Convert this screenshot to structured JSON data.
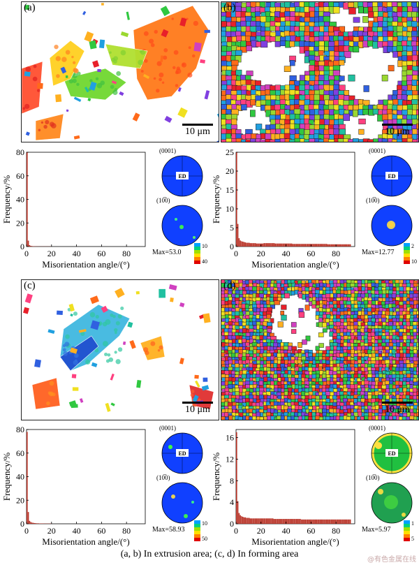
{
  "caption": "(a, b) In extrusion area; (c, d) In forming area",
  "watermark": "@有色金属在线",
  "panels": [
    {
      "label": "(a)",
      "scale": "10 μm",
      "pf_top": "(0001)",
      "pf_bottom": "(10̅0)",
      "ed": "ED",
      "max": "Max=53.0",
      "legend_ticks": [
        "10",
        "40"
      ],
      "texture": "a"
    },
    {
      "label": "(b)",
      "scale": "10 μm",
      "pf_top": "(0001)",
      "pf_bottom": "(10̅0)",
      "ed": "ED",
      "max": "Max=12.77",
      "legend_ticks": [
        "2",
        "10"
      ],
      "texture": "b"
    },
    {
      "label": "(c)",
      "scale": "10 μm",
      "pf_top": "(0001)",
      "pf_bottom": "(10̅0)",
      "ed": "ED",
      "max": "Max=58.93",
      "legend_ticks": [
        "10",
        "50"
      ],
      "texture": "c"
    },
    {
      "label": "(d)",
      "scale": "10 μm",
      "pf_top": "(0001)",
      "pf_bottom": "(10̅0)",
      "ed": "ED",
      "max": "Max=5.97",
      "legend_ticks": [
        "1",
        "5"
      ],
      "texture": "d"
    }
  ],
  "legend_colors": [
    "#00a0ff",
    "#00d080",
    "#a0e000",
    "#ffe000",
    "#ff8000",
    "#e00000"
  ],
  "chart_data": [
    {
      "type": "bar",
      "panel": "a",
      "xlabel": "Misorientation angle/(°)",
      "ylabel": "Frequency/%",
      "xlim": [
        0,
        95
      ],
      "ylim": [
        0,
        80
      ],
      "yticks": [
        0,
        20,
        40,
        60,
        80
      ],
      "xticks": [
        0,
        20,
        40,
        60,
        80
      ],
      "bin_width": 1,
      "values": [
        80,
        5,
        1.2,
        0.6,
        0.4,
        0.3,
        0.2,
        0.2,
        0.15,
        0.15,
        0.1,
        0.1,
        0.1,
        0.1,
        0.1,
        0.1,
        0.1,
        0.1,
        0.1,
        0.1
      ]
    },
    {
      "type": "bar",
      "panel": "b",
      "xlabel": "Misorientation angle/(°)",
      "ylabel": "Frequency/%",
      "xlim": [
        0,
        95
      ],
      "ylim": [
        0,
        25
      ],
      "yticks": [
        0,
        5,
        10,
        15,
        20,
        25
      ],
      "xticks": [
        0,
        20,
        40,
        60,
        80
      ],
      "bin_width": 1,
      "values": [
        25,
        6,
        2.2,
        1.6,
        1.4,
        1.3,
        1.2,
        1.1,
        1.0,
        1.0,
        1.0,
        0.9,
        0.9,
        0.9,
        0.9,
        0.9,
        0.8,
        0.8,
        0.8,
        0.8,
        0.8,
        0.8,
        0.9,
        0.9,
        0.9,
        0.9,
        0.9,
        0.9,
        0.9,
        0.9,
        0.9,
        0.8,
        0.8,
        0.8,
        0.8,
        0.8,
        0.8,
        0.8,
        0.8,
        0.8,
        0.8,
        0.8,
        0.8,
        0.8,
        0.8,
        0.7,
        0.7,
        0.7,
        0.7,
        0.7,
        0.7,
        0.7,
        0.7,
        0.7,
        0.7,
        0.7,
        0.7,
        0.7,
        0.7,
        0.7,
        0.7,
        0.7,
        0.7,
        0.7,
        0.7,
        0.7,
        0.7,
        0.7,
        0.7,
        0.7,
        0.7,
        0.7,
        0.7,
        0.6,
        0.6,
        0.6,
        0.6,
        0.6,
        0.6,
        0.6,
        0.6,
        0.6,
        0.6,
        0.6,
        0.6,
        0.6,
        0.6,
        0.6,
        0.6,
        0.6,
        0.6,
        0.6
      ]
    },
    {
      "type": "bar",
      "panel": "c",
      "xlabel": "Misorientation angle/(°)",
      "ylabel": "Frequency/%",
      "xlim": [
        0,
        95
      ],
      "ylim": [
        0,
        80
      ],
      "yticks": [
        0,
        20,
        40,
        60,
        80
      ],
      "xticks": [
        0,
        20,
        40,
        60,
        80
      ],
      "bin_width": 1,
      "values": [
        78,
        10,
        2.5,
        1.5,
        1.0,
        0.8,
        0.6,
        0.5,
        0.4,
        0.4,
        0.3,
        0.3,
        0.3,
        0.3,
        0.2,
        0.2,
        0.2,
        0.2,
        0.2,
        0.2
      ]
    },
    {
      "type": "bar",
      "panel": "d",
      "xlabel": "Misorientation angle/(°)",
      "ylabel": "Frequency/%",
      "xlim": [
        0,
        95
      ],
      "ylim": [
        0,
        17.5
      ],
      "yticks": [
        0,
        4,
        8,
        12,
        16
      ],
      "xticks": [
        0,
        20,
        40,
        60,
        80
      ],
      "bin_width": 1,
      "values": [
        17,
        4.2,
        2.0,
        1.6,
        1.4,
        1.3,
        1.2,
        1.2,
        1.1,
        1.1,
        1.1,
        1.0,
        1.0,
        1.0,
        1.0,
        1.0,
        1.0,
        1.0,
        1.0,
        1.0,
        1.0,
        1.0,
        1.0,
        1.0,
        1.0,
        1.0,
        1.0,
        1.0,
        1.0,
        1.0,
        0.9,
        0.9,
        0.9,
        0.9,
        0.9,
        0.9,
        0.9,
        0.9,
        0.9,
        0.9,
        0.9,
        0.9,
        0.9,
        0.9,
        0.9,
        0.9,
        0.9,
        0.9,
        0.9,
        0.9,
        0.9,
        0.9,
        0.8,
        0.8,
        0.8,
        0.8,
        0.8,
        0.8,
        0.8,
        0.8,
        0.8,
        0.8,
        0.8,
        0.8,
        0.8,
        0.8,
        0.8,
        0.8,
        0.8,
        0.8,
        0.8,
        0.8,
        0.8,
        0.8,
        0.8,
        0.8,
        0.8,
        0.8,
        0.8,
        0.8,
        0.8,
        0.8,
        0.8,
        0.8,
        0.8,
        0.8,
        0.8,
        0.8,
        0.8,
        0.8,
        0.8,
        0.8
      ]
    }
  ]
}
